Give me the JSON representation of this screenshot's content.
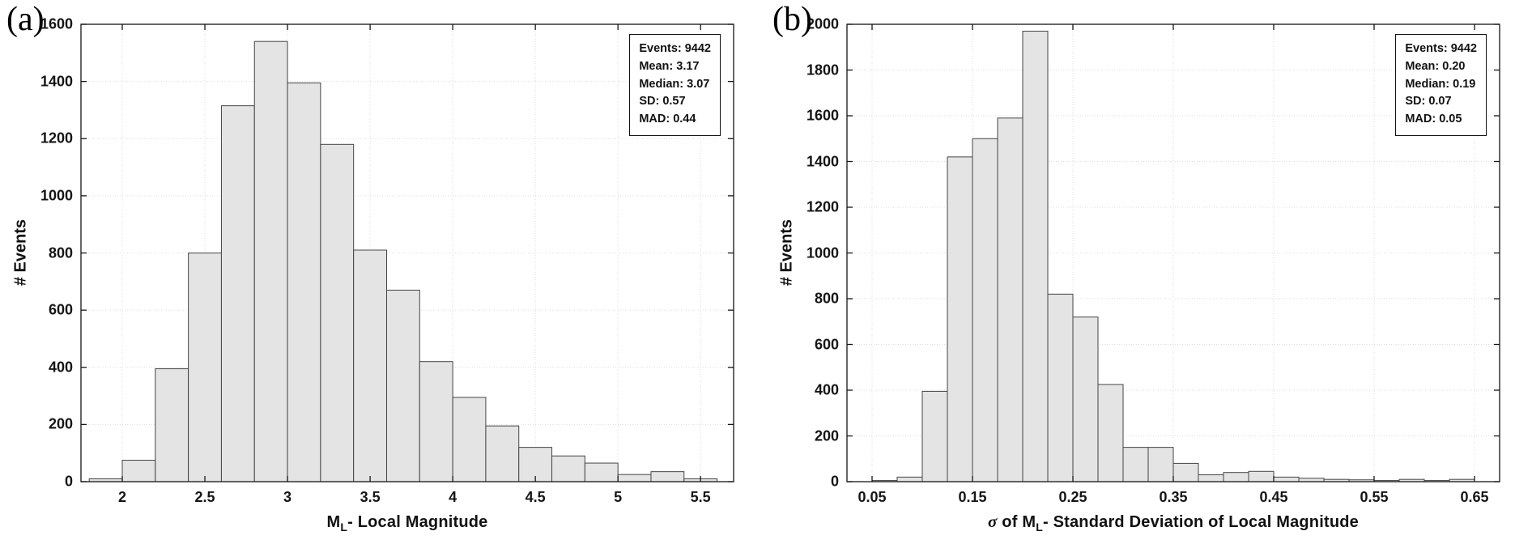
{
  "figure": {
    "background": "#ffffff"
  },
  "chart_data": [
    {
      "type": "bar",
      "panel_label": "(a)",
      "title": "",
      "ylabel": "# Events",
      "xlabel": {
        "sigma": "",
        "of": "",
        "m": "M",
        "sub": "L",
        "tail": "- Local Magnitude"
      },
      "xlim": [
        1.75,
        5.7
      ],
      "ylim": [
        0,
        1600
      ],
      "ytick_step": 200,
      "xticks": [
        2,
        2.5,
        3,
        3.5,
        4,
        4.5,
        5,
        5.5
      ],
      "xtick_labels": [
        "2",
        "2.5",
        "3",
        "3.5",
        "4",
        "4.5",
        "5",
        "5.5"
      ],
      "bin_start": 1.8,
      "bin_width": 0.2,
      "values": [
        10,
        75,
        395,
        800,
        1315,
        1540,
        1395,
        1180,
        810,
        670,
        420,
        295,
        195,
        120,
        90,
        65,
        25,
        35,
        10
      ],
      "stats": [
        "Events: 9442",
        "Mean: 3.17",
        "Median: 3.07",
        "SD: 0.57",
        "MAD: 0.44"
      ],
      "bar_fill": "#e4e4e4",
      "bar_edge": "#454545",
      "grid": "dotted",
      "legend": "none"
    },
    {
      "type": "bar",
      "panel_label": "(b)",
      "title": "",
      "ylabel": "# Events",
      "xlabel": {
        "sigma": "σ",
        "of": " of ",
        "m": "M",
        "sub": "L",
        "tail": "- Standard Deviation of Local Magnitude"
      },
      "xlim": [
        0.025,
        0.675
      ],
      "ylim": [
        0,
        2000
      ],
      "ytick_step": 200,
      "xticks": [
        0.05,
        0.15,
        0.25,
        0.35,
        0.45,
        0.55,
        0.65
      ],
      "xtick_labels": [
        "0.05",
        "0.15",
        "0.25",
        "0.35",
        "0.45",
        "0.55",
        "0.65"
      ],
      "bin_start": 0.05,
      "bin_width": 0.025,
      "values": [
        5,
        20,
        395,
        1420,
        1500,
        1590,
        1970,
        820,
        720,
        425,
        150,
        150,
        80,
        30,
        40,
        45,
        20,
        15,
        10,
        8,
        5,
        10,
        5,
        10
      ],
      "stats": [
        "Events: 9442",
        "Mean: 0.20",
        "Median: 0.19",
        "SD: 0.07",
        "MAD: 0.05"
      ],
      "bar_fill": "#e4e4e4",
      "bar_edge": "#454545",
      "grid": "dotted",
      "legend": "none"
    }
  ]
}
